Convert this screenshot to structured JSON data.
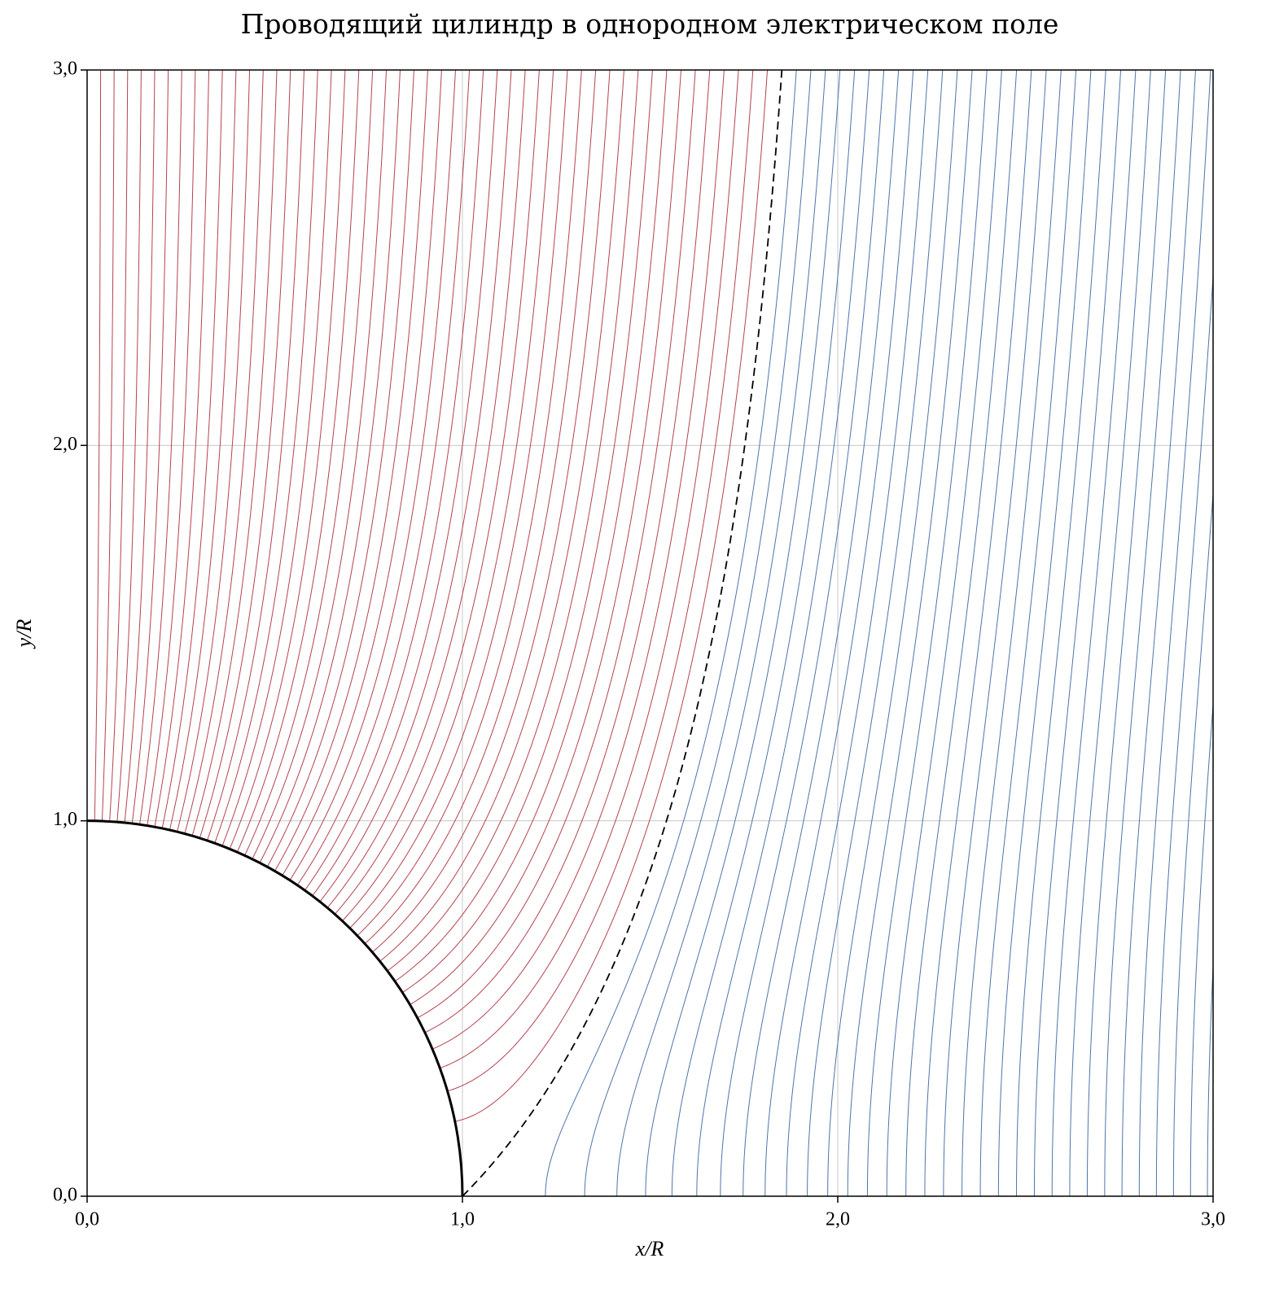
{
  "chart_data": {
    "type": "contour",
    "title": "Проводящий цилиндр в однородном электрическом поле",
    "x_label": "x/R",
    "y_label": "y/R",
    "xlim": [
      0,
      3
    ],
    "ylim": [
      0,
      3
    ],
    "xticks": [
      {
        "value": 0,
        "label": "0,0"
      },
      {
        "value": 1,
        "label": "1,0"
      },
      {
        "value": 2,
        "label": "2,0"
      },
      {
        "value": 3,
        "label": "3,0"
      }
    ],
    "yticks": [
      {
        "value": 0,
        "label": "0,0"
      },
      {
        "value": 1,
        "label": "1,0"
      },
      {
        "value": 2,
        "label": "2,0"
      },
      {
        "value": 3,
        "label": "3,0"
      }
    ],
    "grid": true,
    "cylinder_radius": 1,
    "series": [
      {
        "color": "#b5424f",
        "dashed": false,
        "levels": [
          0.04,
          0.08,
          0.12,
          0.16,
          0.2,
          0.24,
          0.28,
          0.32,
          0.36,
          0.4,
          0.44,
          0.48,
          0.52,
          0.56,
          0.6,
          0.64,
          0.68,
          0.72,
          0.76,
          0.8,
          0.84,
          0.88,
          0.92,
          0.96,
          1,
          1.04,
          1.08,
          1.12,
          1.16,
          1.2,
          1.24,
          1.28,
          1.32,
          1.36,
          1.4,
          1.44,
          1.48,
          1.52,
          1.56,
          1.6,
          1.64,
          1.68,
          1.72,
          1.76,
          1.8,
          1.84,
          1.88,
          1.92,
          1.96
        ]
      },
      {
        "color": "#000000",
        "dashed": true,
        "levels": [
          2
        ]
      },
      {
        "color": "#4f74a8",
        "dashed": false,
        "levels": [
          2.04,
          2.08,
          2.12,
          2.16,
          2.2,
          2.24,
          2.28,
          2.32,
          2.36,
          2.4,
          2.44,
          2.48,
          2.52,
          2.56,
          2.6,
          2.64,
          2.68,
          2.72,
          2.76,
          2.8,
          2.84,
          2.88,
          2.92,
          2.96,
          3,
          3.04,
          3.08,
          3.12,
          3.16,
          3.2,
          3.24,
          3.28,
          3.32
        ]
      }
    ]
  }
}
